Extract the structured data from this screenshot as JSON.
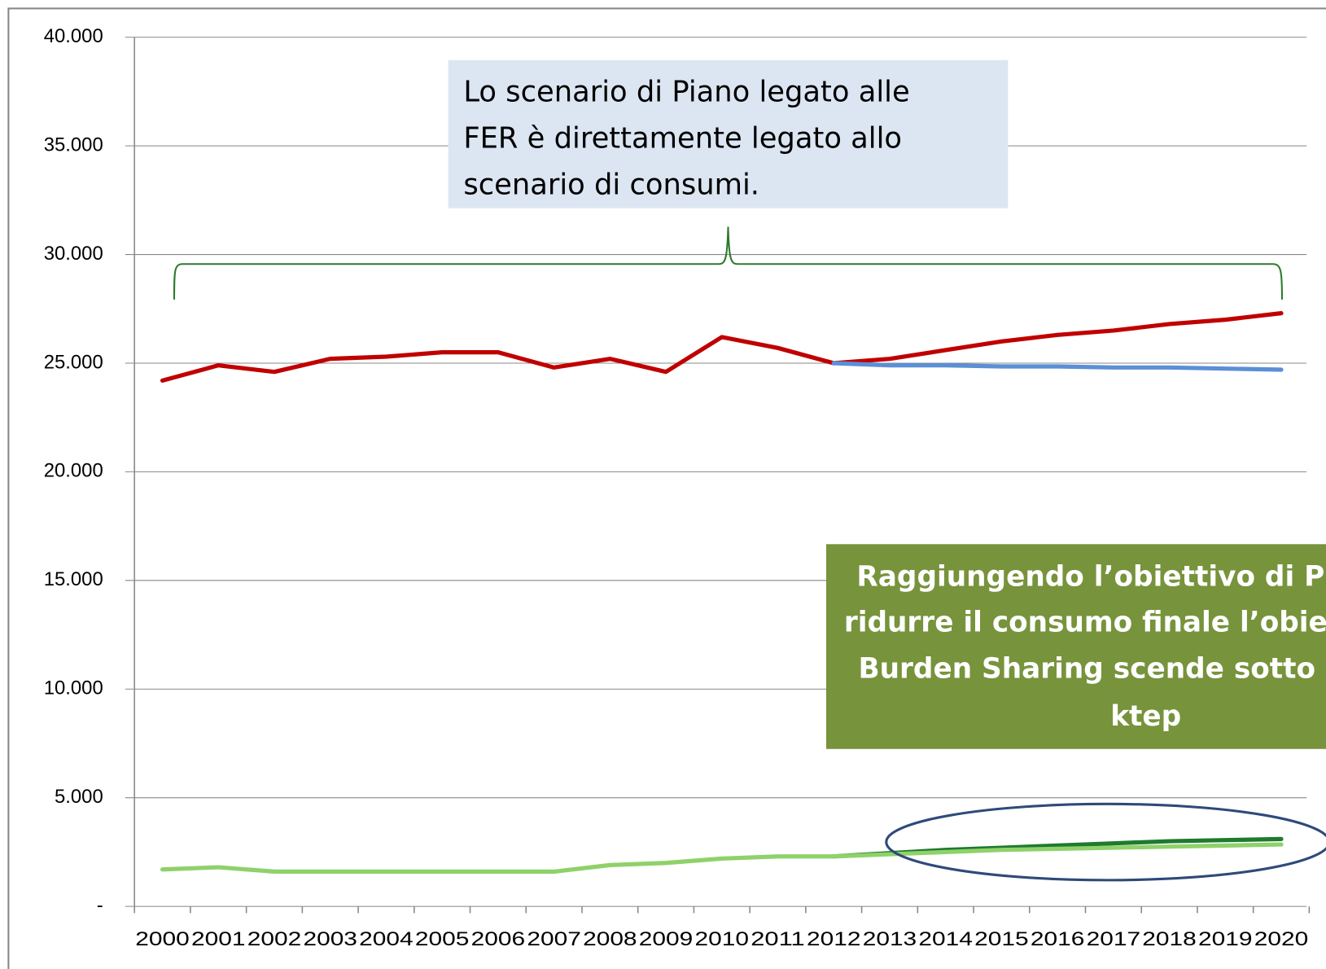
{
  "chart_data": {
    "type": "line",
    "categories": [
      "2000",
      "2001",
      "2002",
      "2003",
      "2004",
      "2005",
      "2006",
      "2007",
      "2008",
      "2009",
      "2010",
      "2011",
      "2012",
      "2013",
      "2014",
      "2015",
      "2016",
      "2017",
      "2018",
      "2019",
      "2020"
    ],
    "series": [
      {
        "color": "#c00000",
        "values": [
          24200,
          24900,
          24600,
          25200,
          25300,
          25500,
          25500,
          24800,
          25200,
          24600,
          26200,
          25700,
          25000,
          25200,
          25600,
          26000,
          26300,
          26500,
          26800,
          27000,
          27300
        ]
      },
      {
        "color": "#5b8fd6",
        "values": [
          null,
          null,
          null,
          null,
          null,
          null,
          null,
          null,
          null,
          null,
          null,
          null,
          25000,
          24900,
          24900,
          24850,
          24850,
          24800,
          24800,
          24750,
          24700
        ]
      },
      {
        "color": "#1e7a2e",
        "values": [
          null,
          null,
          null,
          null,
          null,
          null,
          null,
          null,
          null,
          null,
          null,
          null,
          2300,
          2450,
          2600,
          2700,
          2800,
          2900,
          3000,
          3050,
          3100
        ]
      },
      {
        "color": "#8fd16a",
        "values": [
          1700,
          1800,
          1600,
          1600,
          1600,
          1600,
          1600,
          1600,
          1900,
          2000,
          2200,
          2300,
          2300,
          2400,
          2500,
          2600,
          2650,
          2700,
          2750,
          2800,
          2850
        ]
      }
    ],
    "ylim": [
      0,
      40000
    ],
    "yticks": [
      {
        "value": 0,
        "label": "-"
      },
      {
        "value": 5000,
        "label": "5.000"
      },
      {
        "value": 10000,
        "label": "10.000"
      },
      {
        "value": 15000,
        "label": "15.000"
      },
      {
        "value": 20000,
        "label": "20.000"
      },
      {
        "value": 25000,
        "label": "25.000"
      },
      {
        "value": 30000,
        "label": "30.000"
      },
      {
        "value": 35000,
        "label": "35.000"
      },
      {
        "value": 40000,
        "label": "40.000"
      }
    ],
    "grid": true,
    "annotations": [
      {
        "lines": [
          "Lo scenario di Piano legato alle",
          "FER è direttamente  legato allo",
          "scenario di consumi."
        ]
      },
      {
        "lines": [
          "Raggiungendo l’obiettivo di P",
          "ridurre il consumo finale l’obie",
          "Burden Sharing scende sotto",
          "ktep"
        ]
      }
    ]
  }
}
